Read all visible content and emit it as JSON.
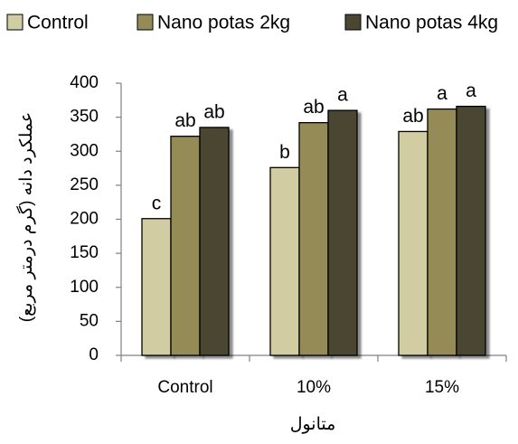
{
  "chart_data": {
    "type": "bar",
    "y_label": "عملکرد دانه (گرم درمتر مربع)",
    "x_label": "متانول",
    "categories": [
      "Control",
      "10%",
      "15%"
    ],
    "series": [
      {
        "name": "Control",
        "color": "#d2cca3",
        "values": [
          201,
          276,
          329
        ],
        "letters": [
          "c",
          "b",
          "ab"
        ]
      },
      {
        "name": "Nano potas 2kg",
        "color": "#958b56",
        "values": [
          322,
          342,
          362
        ],
        "letters": [
          "ab",
          "ab",
          "a"
        ]
      },
      {
        "name": "Nano potas 4kg",
        "color": "#4b4631",
        "values": [
          335,
          360,
          366
        ],
        "letters": [
          "ab",
          "a",
          "a"
        ]
      }
    ],
    "ylim": [
      0,
      400
    ],
    "yticks": [
      0,
      50,
      100,
      150,
      200,
      250,
      300,
      350,
      400
    ],
    "grid": false,
    "legend": "top"
  }
}
